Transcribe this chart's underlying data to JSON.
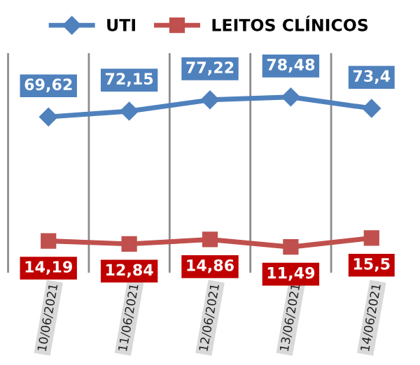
{
  "chart_data": {
    "type": "line",
    "categories": [
      "10/06/2021",
      "11/06/2021",
      "12/06/2021",
      "13/06/2021",
      "14/06/2021"
    ],
    "series": [
      {
        "name": "UTI",
        "color": "#4f81bd",
        "values": [
          69.62,
          72.15,
          77.22,
          78.48,
          73.4
        ],
        "value_labels": [
          "69,62",
          "72,15",
          "77,22",
          "78,48",
          "73,4"
        ],
        "marker": "diamond"
      },
      {
        "name": "LEITOS CLÍNICOS",
        "color": "#c0504d",
        "values": [
          14.19,
          12.84,
          14.86,
          11.49,
          15.5
        ],
        "value_labels": [
          "14,19",
          "12,84",
          "14,86",
          "11,49",
          "15,5"
        ],
        "marker": "square"
      }
    ],
    "grid": "x",
    "legend": "top"
  }
}
